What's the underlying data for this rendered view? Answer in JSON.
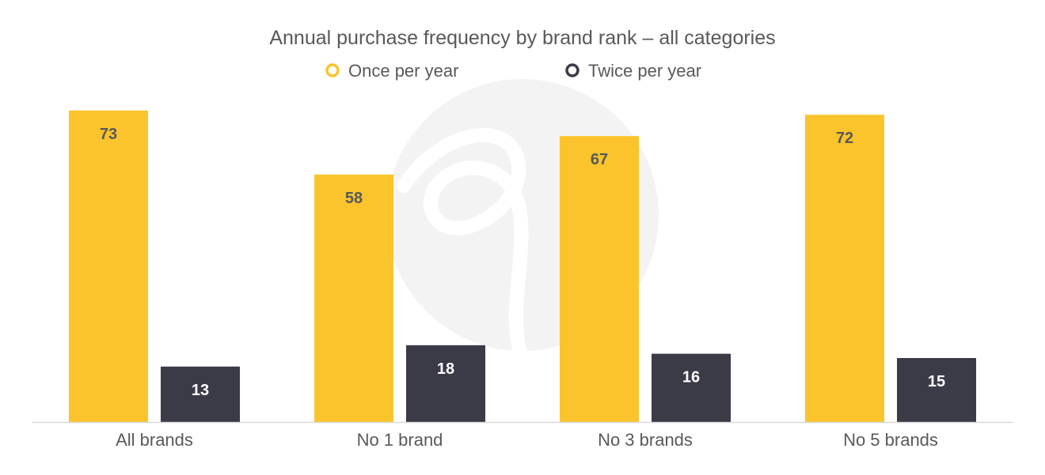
{
  "chart_data": {
    "type": "bar",
    "title": "Annual purchase frequency by brand rank – all categories",
    "categories": [
      "All brands",
      "No 1 brand",
      "No 3 brands",
      "No 5 brands"
    ],
    "series": [
      {
        "name": "Once per year",
        "values": [
          73,
          58,
          67,
          72
        ],
        "color": "#FBC42C",
        "label_color": "#595959"
      },
      {
        "name": "Twice per year",
        "values": [
          13,
          18,
          16,
          15
        ],
        "color": "#3B3A47",
        "label_color": "#FFFFFF"
      }
    ],
    "ylim": [
      0,
      80
    ],
    "grid": false,
    "legend_position": "top-center",
    "xlabel": "",
    "ylabel": ""
  }
}
